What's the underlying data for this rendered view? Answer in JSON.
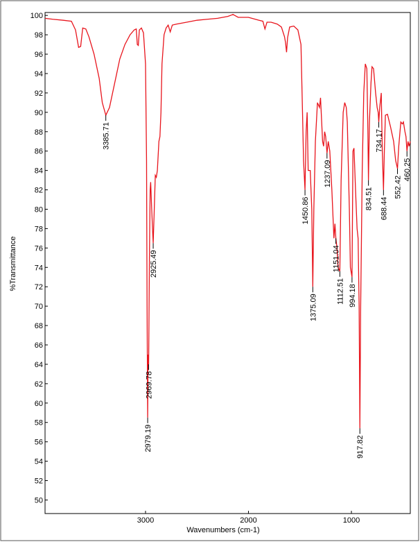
{
  "chart_data": {
    "type": "line",
    "xlabel": "Wavenumbers (cm-1)",
    "ylabel": "%Transmittance",
    "xlim": [
      3976,
      428
    ],
    "ylim": [
      48.6,
      100.3
    ],
    "xticks": [
      3000,
      2000,
      1000
    ],
    "yticks": [
      50,
      52,
      54,
      56,
      58,
      60,
      62,
      64,
      66,
      68,
      70,
      72,
      74,
      76,
      78,
      80,
      82,
      84,
      86,
      88,
      90,
      92,
      94,
      96,
      98,
      100
    ],
    "x": [
      3976,
      3900,
      3800,
      3720,
      3680,
      3650,
      3630,
      3610,
      3580,
      3550,
      3500,
      3450,
      3420,
      3385.71,
      3350,
      3300,
      3250,
      3200,
      3150,
      3110,
      3090,
      3080,
      3070,
      3060,
      3040,
      3020,
      3000,
      2990,
      2985,
      2979.19,
      2975,
      2969.78,
      2962,
      2955,
      2950,
      2940,
      2930,
      2925.49,
      2915,
      2905,
      2895,
      2885,
      2870,
      2860,
      2850,
      2840,
      2820,
      2800,
      2780,
      2760,
      2740,
      2700,
      2600,
      2500,
      2400,
      2300,
      2200,
      2150,
      2100,
      2000,
      1900,
      1860,
      1840,
      1820,
      1780,
      1720,
      1680,
      1650,
      1640,
      1630,
      1620,
      1600,
      1560,
      1520,
      1490,
      1475,
      1465,
      1450.86,
      1440,
      1430,
      1420,
      1400,
      1385,
      1375.09,
      1365,
      1350,
      1330,
      1310,
      1300,
      1280,
      1270,
      1260,
      1250,
      1237.09,
      1225,
      1210,
      1190,
      1170,
      1160,
      1151.04,
      1140,
      1130,
      1112.51,
      1100,
      1080,
      1065,
      1050,
      1040,
      1020,
      1010,
      994.18,
      985,
      975,
      960,
      945,
      935,
      925,
      917.82,
      910,
      895,
      880,
      865,
      850,
      840,
      834.51,
      825,
      810,
      800,
      785,
      765,
      750,
      740,
      734.17,
      725,
      710,
      700,
      688.44,
      680,
      670,
      650,
      620,
      590,
      570,
      552.42,
      540,
      520,
      505,
      495,
      480,
      470,
      460.25,
      450,
      440,
      428
    ],
    "series": [
      {
        "color": "#e8141c",
        "values": [
          99.7,
          99.6,
          99.5,
          99.4,
          98.5,
          96.7,
          96.8,
          98.7,
          98.6,
          97.8,
          96,
          93.5,
          91,
          89.7,
          90.5,
          93,
          95.5,
          97,
          98,
          98.5,
          98.6,
          97,
          96.9,
          98.5,
          98.7,
          98.2,
          95,
          85,
          70,
          58.5,
          65,
          64,
          75,
          82,
          82.8,
          80,
          77.5,
          76.5,
          80,
          83.5,
          83.3,
          84,
          87,
          87.5,
          90,
          95,
          98,
          98.7,
          99,
          98.3,
          99,
          99.1,
          99.3,
          99.5,
          99.6,
          99.7,
          99.9,
          100.1,
          99.8,
          99.8,
          99.5,
          99.4,
          98.6,
          99.3,
          99.3,
          99.1,
          98.8,
          97.8,
          97.2,
          96.2,
          97.7,
          98.8,
          98.9,
          98.5,
          97,
          90,
          85,
          82,
          88,
          90,
          84,
          84,
          80,
          72,
          80,
          87,
          91,
          90.5,
          91.5,
          87,
          86.5,
          88,
          87.5,
          85.8,
          87,
          86,
          82,
          77,
          78.5,
          77,
          76,
          74,
          73.6,
          83,
          90,
          91,
          90.5,
          89,
          80,
          74,
          73,
          86,
          86.3,
          82,
          78,
          77,
          70,
          57.4,
          70,
          84,
          92,
          95,
          94.5,
          88,
          83,
          89,
          93,
          94.7,
          94.5,
          92,
          90.5,
          90,
          89,
          90.5,
          92,
          86,
          82,
          86,
          89.7,
          89.8,
          88.5,
          87,
          85,
          84.2,
          86.5,
          89,
          88.8,
          89,
          88,
          87.5,
          86,
          87,
          86.5,
          87
        ]
      }
    ],
    "peaks": [
      {
        "x": 3385.71,
        "y": 89.7
      },
      {
        "x": 2979.19,
        "y": 58.5
      },
      {
        "x": 2969.78,
        "y": 64
      },
      {
        "x": 2925.49,
        "y": 76.5
      },
      {
        "x": 1450.86,
        "y": 82
      },
      {
        "x": 1375.09,
        "y": 72
      },
      {
        "x": 1237.09,
        "y": 85.8
      },
      {
        "x": 1151.04,
        "y": 77
      },
      {
        "x": 1112.51,
        "y": 73.6
      },
      {
        "x": 994.18,
        "y": 73
      },
      {
        "x": 917.82,
        "y": 57.4
      },
      {
        "x": 834.51,
        "y": 83
      },
      {
        "x": 734.17,
        "y": 89
      },
      {
        "x": 688.44,
        "y": 82
      },
      {
        "x": 552.42,
        "y": 84.2
      },
      {
        "x": 460.25,
        "y": 86
      }
    ]
  }
}
